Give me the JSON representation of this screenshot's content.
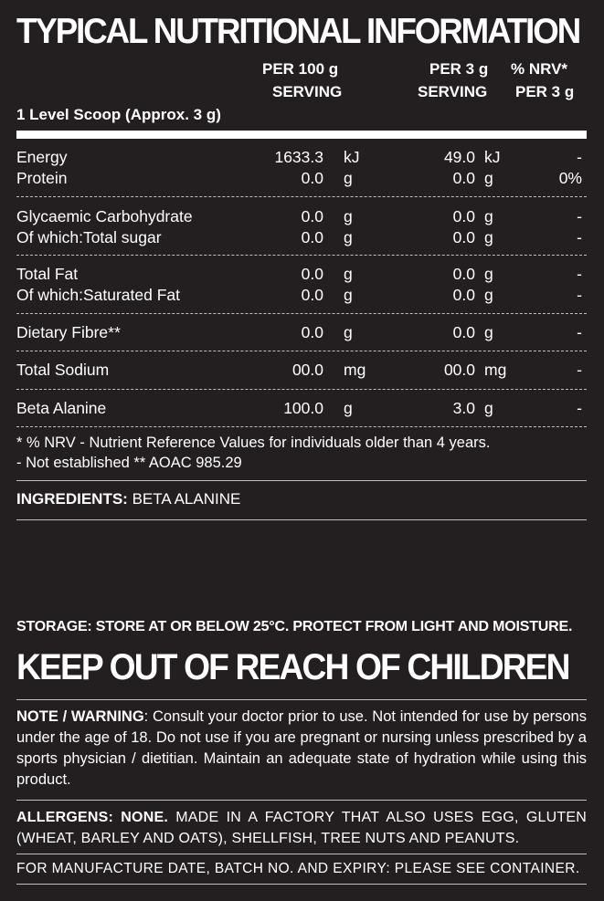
{
  "title": "TYPICAL NUTRITIONAL INFORMATION",
  "headers": {
    "per100_line1": "PER 100  g",
    "per100_line2": "SERVING",
    "per3_line1": "PER 3 g",
    "per3_line2": "SERVING",
    "nrv_line1": "% NRV*",
    "nrv_line2": "PER 3 g"
  },
  "serving_note": "1 Level Scoop (Approx. 3 g)",
  "rows": [
    {
      "label": "Energy",
      "v100": "1633.3",
      "u100": "kJ",
      "v3": "49.0",
      "u3": "kJ",
      "nrv": "-"
    },
    {
      "label": "Protein",
      "v100": "0.0",
      "u100": "g",
      "v3": "0.0",
      "u3": "g",
      "nrv": "0%"
    },
    {
      "label": "Glycaemic Carbohydrate",
      "v100": "0.0",
      "u100": "g",
      "v3": "0.0",
      "u3": "g",
      "nrv": "-"
    },
    {
      "label": "Of which:Total sugar",
      "v100": "0.0",
      "u100": "g",
      "v3": "0.0",
      "u3": "g",
      "nrv": "-"
    },
    {
      "label": "Total Fat",
      "v100": "0.0",
      "u100": "g",
      "v3": "0.0",
      "u3": "g",
      "nrv": "-"
    },
    {
      "label": "Of which:Saturated Fat",
      "v100": "0.0",
      "u100": "g",
      "v3": "0.0",
      "u3": "g",
      "nrv": "-"
    },
    {
      "label": "Dietary Fibre**",
      "v100": "0.0",
      "u100": "g",
      "v3": "0.0",
      "u3": "g",
      "nrv": "-"
    },
    {
      "label": "Total Sodium",
      "v100": "00.0",
      "u100": "mg",
      "v3": "00.0",
      "u3": "mg",
      "nrv": "-"
    },
    {
      "label": "Beta Alanine",
      "v100": "100.0",
      "u100": "g",
      "v3": "3.0",
      "u3": "g",
      "nrv": "-"
    }
  ],
  "footnotes": {
    "line1": "*   % NRV - Nutrient Reference Values for individuals older than 4 years.",
    "line2": "-   Not established ** AOAC 985.29"
  },
  "ingredients": {
    "label": "INGREDIENTS:",
    "value": "BETA ALANINE"
  },
  "storage": "STORAGE: STORE AT OR BELOW 25°C. PROTECT FROM LIGHT AND MOISTURE.",
  "keep_out": "KEEP OUT OF REACH OF CHILDREN",
  "note": {
    "label": "NOTE / WARNING",
    "text": ": Consult your doctor prior to use. Not intended for use by persons under the age of 18. Do not use if you are pregnant or nursing unless prescribed by a sports physician / dietitian. Maintain an adequate state of hydration while using this product."
  },
  "allergens": {
    "label": "ALLERGENS: NONE.",
    "text": " MADE IN A FACTORY THAT ALSO USES EGG, GLUTEN (WHEAT, BARLEY AND OATS), SHELLFISH, TREE NUTS AND PEANUTS."
  },
  "manufacture": "FOR MANUFACTURE DATE, BATCH NO. AND EXPIRY: PLEASE SEE CONTAINER.",
  "colors": {
    "background": "#231f20",
    "text": "#ffffff",
    "rule": "#bfbfbf"
  }
}
